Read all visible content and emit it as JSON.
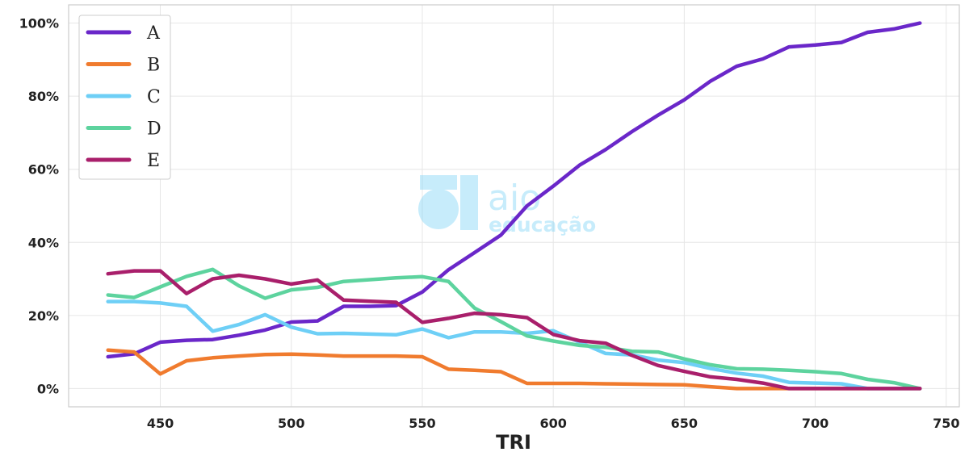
{
  "chart_data": {
    "type": "line",
    "xlabel": "TRI",
    "ylabel": "",
    "xlim": [
      415,
      755
    ],
    "ylim": [
      -0.05,
      1.05
    ],
    "x_ticks": [
      450,
      500,
      550,
      600,
      650,
      700,
      750
    ],
    "y_ticks": [
      0,
      0.2,
      0.4,
      0.6,
      0.8,
      1.0
    ],
    "y_tick_labels": [
      "0%",
      "20%",
      "40%",
      "60%",
      "80%",
      "100%"
    ],
    "grid": true,
    "legend_position": "top-left",
    "watermark": {
      "line1": "aio",
      "line2": "educação"
    },
    "x": [
      430,
      440,
      450,
      460,
      470,
      480,
      490,
      500,
      510,
      520,
      530,
      540,
      550,
      560,
      570,
      580,
      590,
      600,
      610,
      620,
      630,
      640,
      650,
      660,
      670,
      680,
      690,
      700,
      710,
      720,
      730,
      740
    ],
    "series": [
      {
        "name": "A",
        "color": "#6a27c9",
        "values": [
          0.087,
          0.095,
          0.127,
          0.132,
          0.134,
          0.146,
          0.16,
          0.182,
          0.185,
          0.225,
          0.225,
          0.227,
          0.264,
          0.325,
          0.372,
          0.42,
          0.5,
          0.554,
          0.611,
          0.654,
          0.703,
          0.748,
          0.79,
          0.841,
          0.882,
          0.902,
          0.935,
          0.94,
          0.947,
          0.975,
          0.984,
          1.0
        ]
      },
      {
        "name": "B",
        "color": "#f07b2e",
        "values": [
          0.105,
          0.1,
          0.04,
          0.076,
          0.084,
          0.089,
          0.093,
          0.094,
          0.092,
          0.089,
          0.089,
          0.089,
          0.087,
          0.053,
          0.05,
          0.046,
          0.014,
          0.014,
          0.014,
          0.013,
          0.012,
          0.011,
          0.01,
          0.005,
          0.0,
          0.0,
          0.0,
          0.0,
          0.0,
          0.0,
          0.0,
          0.0
        ]
      },
      {
        "name": "C",
        "color": "#6ecff6",
        "values": [
          0.238,
          0.238,
          0.234,
          0.225,
          0.157,
          0.175,
          0.202,
          0.168,
          0.15,
          0.151,
          0.149,
          0.147,
          0.163,
          0.139,
          0.155,
          0.155,
          0.151,
          0.158,
          0.127,
          0.096,
          0.092,
          0.078,
          0.071,
          0.055,
          0.042,
          0.034,
          0.017,
          0.015,
          0.013,
          0.0,
          0.0,
          0.0
        ]
      },
      {
        "name": "D",
        "color": "#5dd39e",
        "values": [
          0.256,
          0.249,
          0.278,
          0.307,
          0.326,
          0.281,
          0.247,
          0.27,
          0.277,
          0.293,
          0.298,
          0.303,
          0.306,
          0.293,
          0.22,
          0.183,
          0.144,
          0.13,
          0.118,
          0.113,
          0.102,
          0.1,
          0.081,
          0.065,
          0.054,
          0.053,
          0.05,
          0.046,
          0.041,
          0.025,
          0.016,
          0.0
        ]
      },
      {
        "name": "E",
        "color": "#a91f6b",
        "values": [
          0.314,
          0.322,
          0.322,
          0.26,
          0.3,
          0.31,
          0.3,
          0.286,
          0.297,
          0.242,
          0.239,
          0.236,
          0.181,
          0.192,
          0.206,
          0.202,
          0.194,
          0.148,
          0.131,
          0.124,
          0.091,
          0.063,
          0.047,
          0.032,
          0.025,
          0.015,
          0.0,
          0.0,
          0.0,
          0.0,
          0.0,
          0.0
        ]
      }
    ]
  }
}
